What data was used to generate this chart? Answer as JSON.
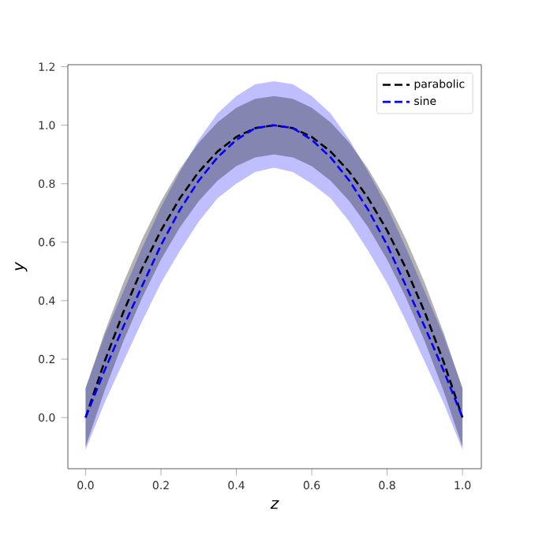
{
  "chart_data": {
    "type": "line",
    "xlabel": "z",
    "ylabel": "y",
    "x": [
      0,
      0.05,
      0.1,
      0.15,
      0.2,
      0.25,
      0.3,
      0.35,
      0.4,
      0.45,
      0.5,
      0.55,
      0.6,
      0.65,
      0.7,
      0.75,
      0.8,
      0.85,
      0.9,
      0.95,
      1.0
    ],
    "series": [
      {
        "name": "parabolic",
        "color": "#000000",
        "values": [
          0,
          0.19,
          0.36,
          0.51,
          0.64,
          0.75,
          0.84,
          0.91,
          0.96,
          0.99,
          1.0,
          0.99,
          0.96,
          0.91,
          0.84,
          0.75,
          0.64,
          0.51,
          0.36,
          0.19,
          0
        ],
        "lower": [
          -0.1,
          0.09,
          0.26,
          0.41,
          0.54,
          0.65,
          0.74,
          0.81,
          0.86,
          0.89,
          0.9,
          0.89,
          0.86,
          0.81,
          0.74,
          0.65,
          0.54,
          0.41,
          0.26,
          0.09,
          -0.1
        ],
        "upper": [
          0.1,
          0.29,
          0.46,
          0.61,
          0.74,
          0.85,
          0.94,
          1.01,
          1.06,
          1.09,
          1.1,
          1.09,
          1.06,
          1.01,
          0.94,
          0.85,
          0.74,
          0.61,
          0.46,
          0.29,
          0.1
        ]
      },
      {
        "name": "sine",
        "color": "#0000ff",
        "values": [
          0,
          0.16,
          0.31,
          0.45,
          0.59,
          0.71,
          0.81,
          0.89,
          0.95,
          0.99,
          1.0,
          0.99,
          0.95,
          0.89,
          0.81,
          0.71,
          0.59,
          0.45,
          0.31,
          0.16,
          0
        ],
        "lower": [
          -0.11,
          0.05,
          0.19,
          0.33,
          0.46,
          0.57,
          0.67,
          0.75,
          0.8,
          0.84,
          0.855,
          0.84,
          0.8,
          0.75,
          0.67,
          0.57,
          0.46,
          0.33,
          0.19,
          0.05,
          -0.11
        ],
        "upper": [
          0.1,
          0.28,
          0.43,
          0.58,
          0.72,
          0.84,
          0.95,
          1.04,
          1.1,
          1.14,
          1.15,
          1.14,
          1.1,
          1.04,
          0.95,
          0.84,
          0.72,
          0.58,
          0.43,
          0.28,
          0.1
        ]
      }
    ],
    "xlim": [
      -0.047,
      1.05
    ],
    "ylim": [
      -0.175,
      1.207
    ],
    "xticks": [
      {
        "value": 0,
        "label": "0.0"
      },
      0.2,
      0.4,
      0.6,
      0.8,
      {
        "value": 1,
        "label": "1.0"
      }
    ],
    "yticks": [
      {
        "value": 0,
        "label": "0.0"
      },
      0.2,
      0.4,
      0.6,
      0.8,
      {
        "value": 1,
        "label": "1.0"
      },
      1.2
    ],
    "legend": "top right",
    "line_style": "dashed",
    "marker": "none",
    "grid": false
  }
}
